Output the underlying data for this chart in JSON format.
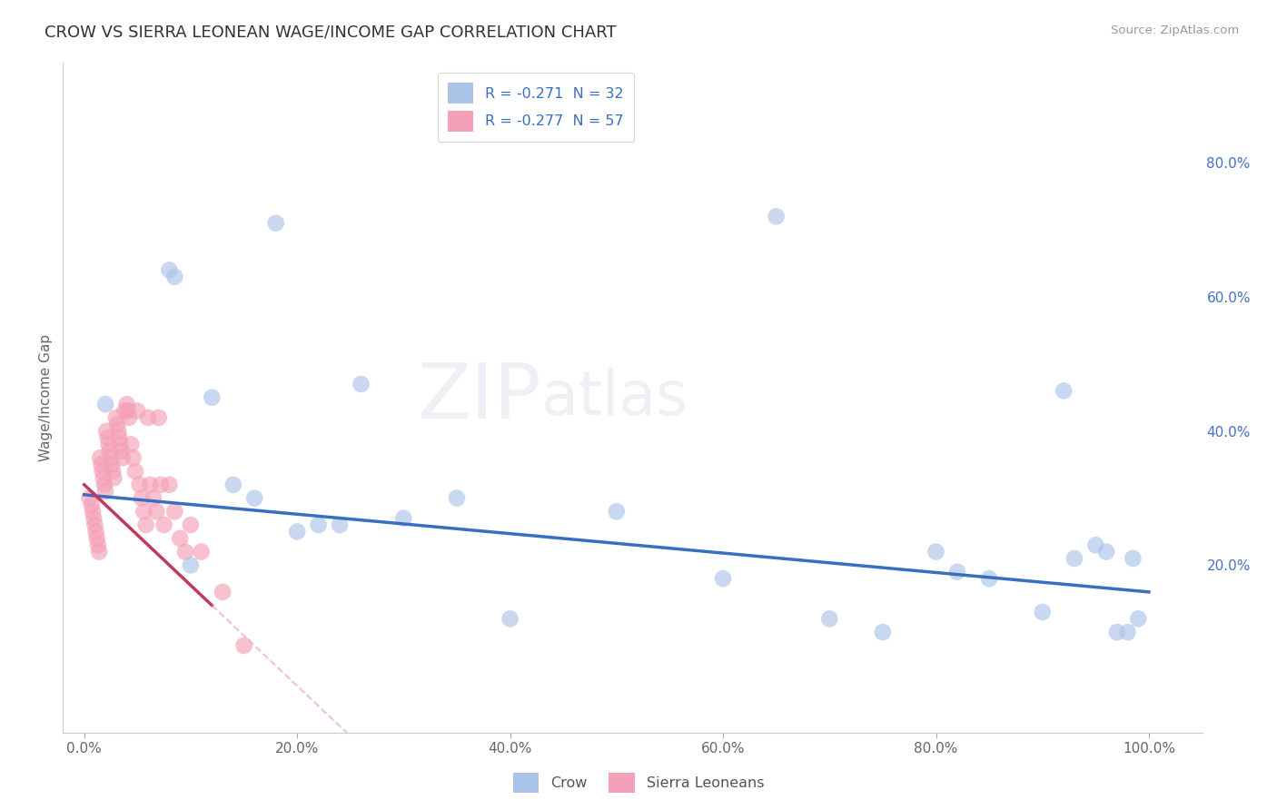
{
  "title": "CROW VS SIERRA LEONEAN WAGE/INCOME GAP CORRELATION CHART",
  "source": "Source: ZipAtlas.com",
  "ylabel": "Wage/Income Gap",
  "xlim": [
    -0.02,
    1.05
  ],
  "ylim": [
    -0.05,
    0.95
  ],
  "xtick_labels": [
    "0.0%",
    "20.0%",
    "40.0%",
    "60.0%",
    "80.0%",
    "100.0%"
  ],
  "xtick_vals": [
    0.0,
    0.2,
    0.4,
    0.6,
    0.8,
    1.0
  ],
  "right_ytick_labels": [
    "80.0%",
    "60.0%",
    "40.0%",
    "20.0%"
  ],
  "right_ytick_vals": [
    0.8,
    0.6,
    0.4,
    0.2
  ],
  "legend_r_crow": "R = -0.271",
  "legend_n_crow": "N = 32",
  "legend_r_sl": "R = -0.277",
  "legend_n_sl": "N = 57",
  "crow_color": "#aac4e8",
  "sl_color": "#f4a0b8",
  "crow_line_color": "#3a6fbf",
  "sl_line_color": "#c0395a",
  "sl_line_dashed_color": "#e8aabb",
  "background_color": "#ffffff",
  "crow_scatter_x": [
    0.02,
    0.08,
    0.085,
    0.1,
    0.12,
    0.14,
    0.4,
    0.5,
    0.18,
    0.65,
    0.2,
    0.26,
    0.3,
    0.35,
    0.22,
    0.8,
    0.82,
    0.85,
    0.9,
    0.92,
    0.93,
    0.95,
    0.96,
    0.97,
    0.98,
    0.985,
    0.99,
    0.6,
    0.75,
    0.7,
    0.24,
    0.16
  ],
  "crow_scatter_y": [
    0.44,
    0.64,
    0.63,
    0.2,
    0.45,
    0.32,
    0.12,
    0.28,
    0.71,
    0.72,
    0.25,
    0.47,
    0.27,
    0.3,
    0.26,
    0.22,
    0.19,
    0.18,
    0.13,
    0.46,
    0.21,
    0.23,
    0.22,
    0.1,
    0.1,
    0.21,
    0.12,
    0.18,
    0.1,
    0.12,
    0.26,
    0.3
  ],
  "sl_scatter_x": [
    0.005,
    0.007,
    0.008,
    0.009,
    0.01,
    0.011,
    0.012,
    0.013,
    0.014,
    0.015,
    0.016,
    0.017,
    0.018,
    0.019,
    0.02,
    0.021,
    0.022,
    0.023,
    0.024,
    0.025,
    0.026,
    0.027,
    0.028,
    0.03,
    0.031,
    0.032,
    0.033,
    0.034,
    0.035,
    0.036,
    0.038,
    0.04,
    0.041,
    0.042,
    0.044,
    0.046,
    0.048,
    0.05,
    0.052,
    0.054,
    0.056,
    0.058,
    0.06,
    0.062,
    0.065,
    0.068,
    0.07,
    0.072,
    0.075,
    0.08,
    0.085,
    0.09,
    0.095,
    0.1,
    0.11,
    0.13,
    0.15
  ],
  "sl_scatter_y": [
    0.3,
    0.29,
    0.28,
    0.27,
    0.26,
    0.25,
    0.24,
    0.23,
    0.22,
    0.36,
    0.35,
    0.34,
    0.33,
    0.32,
    0.31,
    0.4,
    0.39,
    0.38,
    0.37,
    0.36,
    0.35,
    0.34,
    0.33,
    0.42,
    0.41,
    0.4,
    0.39,
    0.38,
    0.37,
    0.36,
    0.43,
    0.44,
    0.43,
    0.42,
    0.38,
    0.36,
    0.34,
    0.43,
    0.32,
    0.3,
    0.28,
    0.26,
    0.42,
    0.32,
    0.3,
    0.28,
    0.42,
    0.32,
    0.26,
    0.32,
    0.28,
    0.24,
    0.22,
    0.26,
    0.22,
    0.16,
    0.08
  ]
}
